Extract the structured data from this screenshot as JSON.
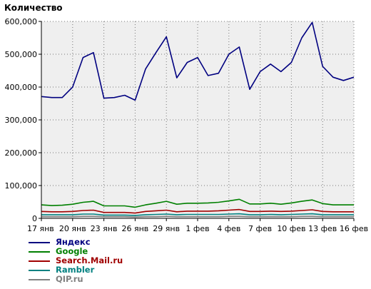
{
  "chart_data": {
    "type": "line",
    "title": "Количество",
    "xlabel": "",
    "ylabel": "",
    "ylim": [
      0,
      600000
    ],
    "yticks": [
      0,
      100000,
      200000,
      300000,
      400000,
      500000,
      600000
    ],
    "ytick_labels": [
      "0",
      "100,000",
      "200,000",
      "300,000",
      "400,000",
      "500,000",
      "600,000"
    ],
    "x_tick_labels": [
      "17 янв",
      "20 янв",
      "23 янв",
      "26 янв",
      "29 янв",
      "1 фев",
      "4 фев",
      "7 фев",
      "10 фев",
      "13 фев",
      "16 фев"
    ],
    "x_tick_step_days": 3,
    "grid": true,
    "legend_position": "bottom-left",
    "series": [
      {
        "name": "Яндекс",
        "color": "#000080",
        "values": [
          371000,
          368000,
          368000,
          400000,
          490000,
          505000,
          366000,
          368000,
          375000,
          360000,
          455000,
          505000,
          553000,
          428000,
          475000,
          490000,
          435000,
          442000,
          500000,
          522000,
          393000,
          447000,
          470000,
          447000,
          475000,
          550000,
          597000,
          463000,
          430000,
          420000,
          430000
        ]
      },
      {
        "name": "Google",
        "color": "#008000",
        "values": [
          41000,
          39000,
          40000,
          43000,
          49000,
          52000,
          38000,
          38000,
          38000,
          34000,
          41000,
          46000,
          52000,
          43000,
          46000,
          46000,
          47000,
          49000,
          53000,
          58000,
          44000,
          44000,
          46000,
          43000,
          47000,
          52000,
          56000,
          45000,
          41000,
          41000,
          41000
        ]
      },
      {
        "name": "Search.Mail.ru",
        "color": "#a00000",
        "values": [
          21000,
          20000,
          20000,
          21000,
          24000,
          25000,
          18000,
          18000,
          18000,
          16000,
          21000,
          23000,
          25000,
          20000,
          22000,
          22000,
          22000,
          23000,
          25000,
          27000,
          21000,
          21000,
          22000,
          21000,
          22000,
          24000,
          26000,
          21000,
          20000,
          20000,
          20000
        ]
      },
      {
        "name": "Rambler",
        "color": "#008080",
        "values": [
          11000,
          11000,
          11000,
          11000,
          13000,
          13000,
          10000,
          10000,
          10000,
          9000,
          11000,
          12000,
          13000,
          11000,
          12000,
          12000,
          12000,
          12000,
          13000,
          14000,
          11000,
          11000,
          12000,
          11000,
          12000,
          13000,
          14000,
          11000,
          11000,
          11000,
          11000
        ]
      },
      {
        "name": "QIP.ru",
        "color": "#808080",
        "values": [
          5000,
          5000,
          5000,
          5000,
          6000,
          6000,
          5000,
          5000,
          5000,
          4000,
          5000,
          5000,
          6000,
          5000,
          5000,
          5000,
          5000,
          5000,
          6000,
          6000,
          5000,
          5000,
          5000,
          5000,
          5000,
          6000,
          6000,
          5000,
          5000,
          5000,
          5000
        ]
      }
    ]
  }
}
